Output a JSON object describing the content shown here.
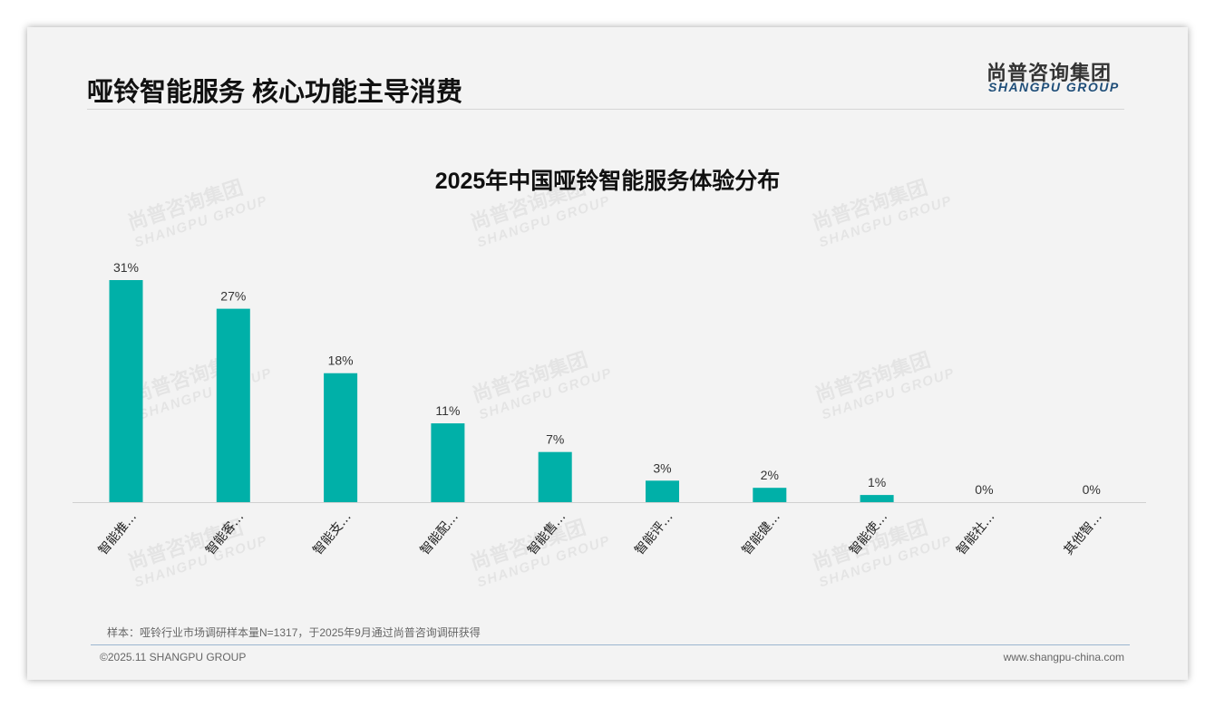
{
  "header": {
    "title": "哑铃智能服务 核心功能主导消费",
    "logo_cn": "尚普咨询集团",
    "logo_en": "SHANGPU GROUP"
  },
  "chart_data": {
    "type": "bar",
    "title": "2025年中国哑铃智能服务体验分布",
    "categories": [
      "智能推…",
      "智能客…",
      "智能支…",
      "智能配…",
      "智能售…",
      "智能评…",
      "智能健…",
      "智能使…",
      "智能社…",
      "其他智…"
    ],
    "values": [
      31,
      27,
      18,
      11,
      7,
      3,
      2,
      1,
      0,
      0
    ],
    "value_labels": [
      "31%",
      "27%",
      "18%",
      "11%",
      "7%",
      "3%",
      "2%",
      "1%",
      "0%",
      "0%"
    ],
    "xlabel": "",
    "ylabel": "",
    "ylim": [
      0,
      31
    ],
    "grid": false,
    "color": "#00b0a8"
  },
  "footer": {
    "note": "样本：哑铃行业市场调研样本量N=1317，于2025年9月通过尚普咨询调研获得",
    "copyright": "©2025.11 SHANGPU GROUP",
    "website": "www.shangpu-china.com"
  }
}
